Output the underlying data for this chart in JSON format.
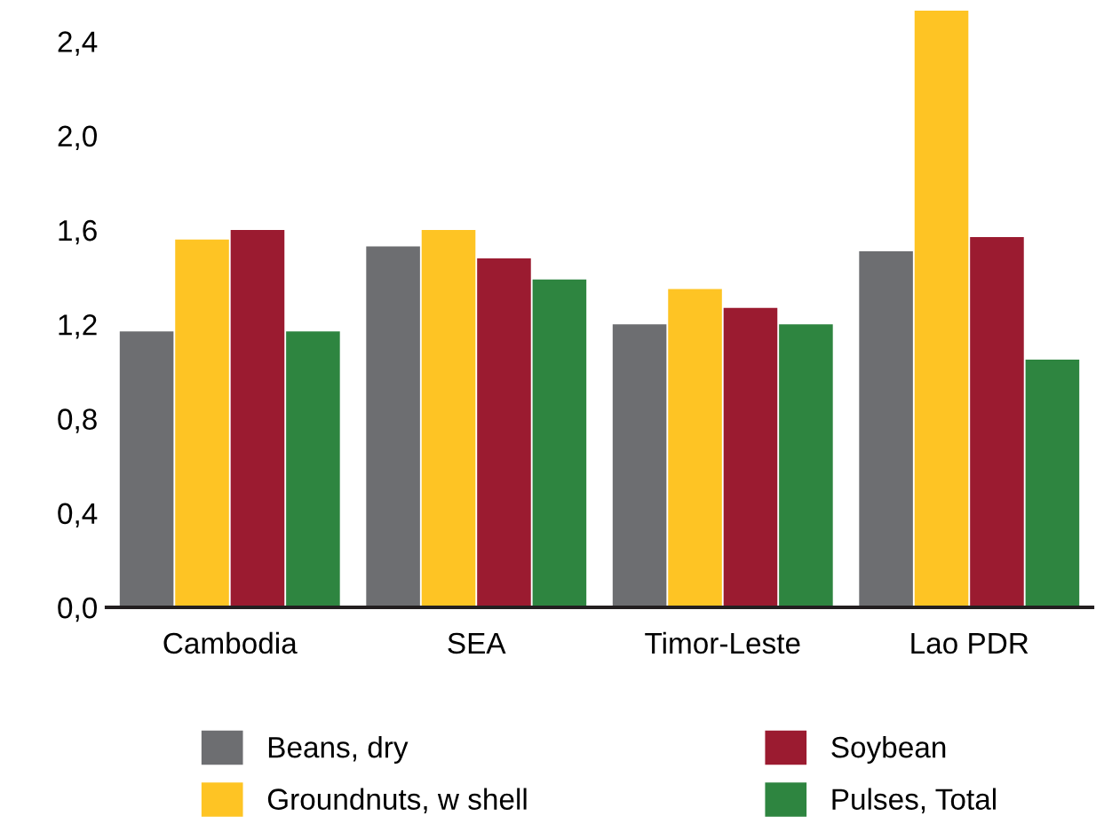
{
  "chart_data": {
    "type": "bar",
    "categories": [
      "Cambodia",
      "SEA",
      "Timor-Leste",
      "Lao PDR"
    ],
    "series": [
      {
        "name": "Beans, dry",
        "color": "#6d6e71",
        "values": [
          1.17,
          1.53,
          1.2,
          1.51
        ]
      },
      {
        "name": "Groundnuts, w shell",
        "color": "#fec424",
        "values": [
          1.56,
          1.6,
          1.35,
          2.53
        ]
      },
      {
        "name": "Soybean",
        "color": "#9b1b30",
        "values": [
          1.6,
          1.48,
          1.27,
          1.57
        ]
      },
      {
        "name": "Pulses, Total",
        "color": "#2e8540",
        "values": [
          1.17,
          1.39,
          1.2,
          1.05
        ]
      }
    ],
    "ylim": [
      0,
      2.56
    ],
    "yticks": [
      {
        "value": 0,
        "label": "0,0"
      },
      {
        "value": 0.4,
        "label": "0,4"
      },
      {
        "value": 0.8,
        "label": "0,8"
      },
      {
        "value": 1.2,
        "label": "1,2"
      },
      {
        "value": 1.6,
        "label": "1,6"
      },
      {
        "value": 2.0,
        "label": "2,0"
      },
      {
        "value": 2.4,
        "label": "2,4"
      }
    ],
    "legend": "bottom",
    "grid": false
  }
}
